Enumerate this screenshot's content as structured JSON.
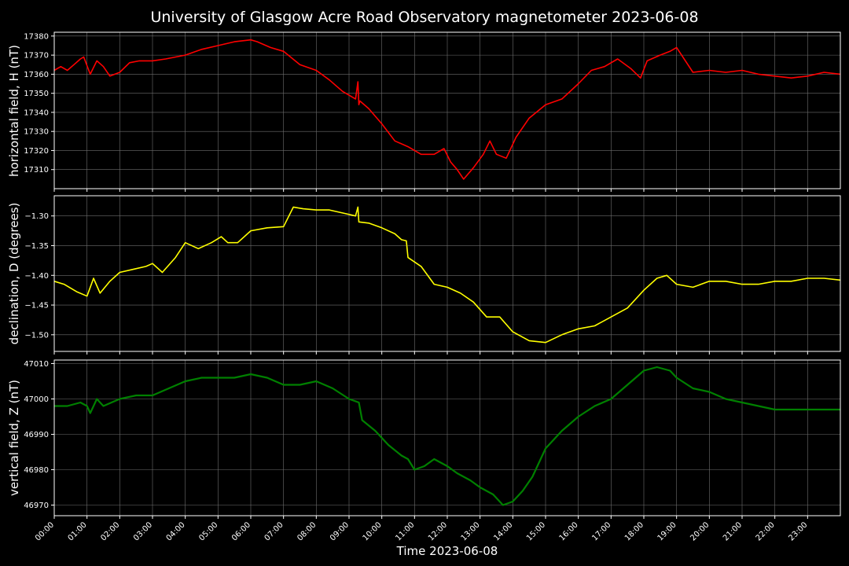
{
  "chart_data": {
    "title": "University of Glasgow Acre Road Observatory magnetometer 2023-06-08",
    "xlabel": "Time 2023-06-08",
    "xlim": [
      0,
      24
    ],
    "x_ticks": [
      0,
      1,
      2,
      3,
      4,
      5,
      6,
      7,
      8,
      9,
      10,
      11,
      12,
      13,
      14,
      15,
      16,
      17,
      18,
      19,
      20,
      21,
      22,
      23
    ],
    "x_tick_labels": [
      "00:00",
      "01:00",
      "02:00",
      "03:00",
      "04:00",
      "05:00",
      "06:00",
      "07:00",
      "08:00",
      "09:00",
      "10:00",
      "11:00",
      "12:00",
      "13:00",
      "14:00",
      "15:00",
      "16:00",
      "17:00",
      "18:00",
      "19:00",
      "20:00",
      "21:00",
      "22:00",
      "23:00"
    ],
    "grid": true,
    "panels": [
      {
        "type": "line",
        "ylabel": "horizontal field, H (nT)",
        "color": "#ff0000",
        "ylim": [
          17300,
          17382
        ],
        "y_ticks": [
          17310,
          17320,
          17330,
          17340,
          17350,
          17360,
          17370,
          17380
        ],
        "y_tick_labels": [
          "17310",
          "17320",
          "17330",
          "17340",
          "17350",
          "17360",
          "17370",
          "17380"
        ],
        "x": [
          0,
          0.2,
          0.4,
          0.6,
          0.8,
          0.9,
          1.1,
          1.3,
          1.5,
          1.7,
          2,
          2.3,
          2.6,
          3,
          3.4,
          4,
          4.5,
          5,
          5.5,
          6,
          6.2,
          6.6,
          7,
          7.5,
          8,
          8.4,
          8.8,
          9.2,
          9.27,
          9.3,
          9.33,
          9.6,
          10,
          10.4,
          10.8,
          11.2,
          11.6,
          11.9,
          12.1,
          12.3,
          12.5,
          12.8,
          13.1,
          13.3,
          13.5,
          13.8,
          14.1,
          14.5,
          15,
          15.5,
          16,
          16.4,
          16.8,
          17.2,
          17.6,
          17.9,
          18.1,
          18.5,
          18.8,
          19,
          19.5,
          20,
          20.5,
          21,
          21.5,
          22,
          22.5,
          23,
          23.5,
          24
        ],
        "y": [
          17362,
          17364,
          17362,
          17365,
          17368,
          17369,
          17360,
          17367,
          17364,
          17359,
          17361,
          17366,
          17367,
          17367,
          17368,
          17370,
          17373,
          17375,
          17377,
          17378,
          17377,
          17374,
          17372,
          17365,
          17362,
          17357,
          17351,
          17347,
          17356,
          17344,
          17346,
          17342,
          17334,
          17325,
          17322,
          17318,
          17318,
          17321,
          17314,
          17310,
          17305,
          17311,
          17318,
          17325,
          17318,
          17316,
          17327,
          17337,
          17344,
          17347,
          17355,
          17362,
          17364,
          17368,
          17363,
          17358,
          17367,
          17370,
          17372,
          17374,
          17361,
          17362,
          17361,
          17362,
          17360,
          17359,
          17358,
          17359,
          17361,
          17360
        ]
      },
      {
        "type": "line",
        "ylabel": "declination, D (degrees)",
        "color": "#ffff00",
        "ylim": [
          -1.528,
          -1.266
        ],
        "y_ticks": [
          -1.5,
          -1.45,
          -1.4,
          -1.35,
          -1.3
        ],
        "y_tick_labels": [
          "−1.50",
          "−1.45",
          "−1.40",
          "−1.35",
          "−1.30"
        ],
        "x": [
          0,
          0.3,
          0.7,
          1,
          1.2,
          1.4,
          1.7,
          2,
          2.4,
          2.8,
          3,
          3.3,
          3.7,
          4,
          4.4,
          4.8,
          5.1,
          5.3,
          5.6,
          6,
          6.5,
          7,
          7.3,
          7.6,
          8,
          8.4,
          8.8,
          9.2,
          9.27,
          9.3,
          9.6,
          10,
          10.4,
          10.6,
          10.75,
          10.8,
          11.2,
          11.6,
          12,
          12.4,
          12.8,
          13.2,
          13.6,
          14,
          14.5,
          15,
          15.5,
          16,
          16.5,
          17,
          17.5,
          18,
          18.4,
          18.7,
          19,
          19.5,
          20,
          20.5,
          21,
          21.5,
          22,
          22.5,
          23,
          23.5,
          24
        ],
        "y": [
          -1.41,
          -1.415,
          -1.428,
          -1.435,
          -1.405,
          -1.43,
          -1.41,
          -1.395,
          -1.39,
          -1.385,
          -1.38,
          -1.395,
          -1.37,
          -1.345,
          -1.355,
          -1.345,
          -1.335,
          -1.345,
          -1.345,
          -1.325,
          -1.32,
          -1.318,
          -1.285,
          -1.288,
          -1.29,
          -1.29,
          -1.295,
          -1.3,
          -1.285,
          -1.31,
          -1.312,
          -1.32,
          -1.33,
          -1.34,
          -1.342,
          -1.37,
          -1.385,
          -1.415,
          -1.42,
          -1.43,
          -1.445,
          -1.47,
          -1.47,
          -1.495,
          -1.51,
          -1.513,
          -1.5,
          -1.49,
          -1.485,
          -1.47,
          -1.455,
          -1.425,
          -1.405,
          -1.4,
          -1.415,
          -1.42,
          -1.41,
          -1.41,
          -1.415,
          -1.415,
          -1.41,
          -1.41,
          -1.405,
          -1.405,
          -1.408
        ]
      },
      {
        "type": "line",
        "ylabel": "vertical field, Z (nT)",
        "color": "#008000",
        "ylim": [
          46967,
          47011
        ],
        "y_ticks": [
          46970,
          46980,
          46990,
          47000,
          47010
        ],
        "y_tick_labels": [
          "46970",
          "46980",
          "46990",
          "47000",
          "47010"
        ],
        "x": [
          0,
          0.4,
          0.8,
          1,
          1.1,
          1.3,
          1.5,
          2,
          2.5,
          3,
          3.5,
          4,
          4.5,
          5,
          5.5,
          6,
          6.5,
          7,
          7.5,
          8,
          8.5,
          9,
          9.3,
          9.4,
          9.8,
          10.2,
          10.6,
          10.8,
          11,
          11.3,
          11.6,
          12,
          12.3,
          12.7,
          13,
          13.4,
          13.7,
          14,
          14.3,
          14.6,
          15,
          15.5,
          16,
          16.5,
          17,
          17.5,
          18,
          18.4,
          18.8,
          19,
          19.5,
          20,
          20.5,
          21,
          21.5,
          22,
          22.5,
          23,
          23.5,
          24
        ],
        "y": [
          46998,
          46998,
          46999,
          46998,
          46996,
          47000,
          46998,
          47000,
          47001,
          47001,
          47003,
          47005,
          47006,
          47006,
          47006,
          47007,
          47006,
          47004,
          47004,
          47005,
          47003,
          47000,
          46999,
          46994,
          46991,
          46987,
          46984,
          46983,
          46980,
          46981,
          46983,
          46981,
          46979,
          46977,
          46975,
          46973,
          46970,
          46971,
          46974,
          46978,
          46986,
          46991,
          46995,
          46998,
          47000,
          47004,
          47008,
          47009,
          47008,
          47006,
          47003,
          47002,
          47000,
          46999,
          46998,
          46997,
          46997,
          46997,
          46997,
          46997
        ]
      }
    ]
  }
}
